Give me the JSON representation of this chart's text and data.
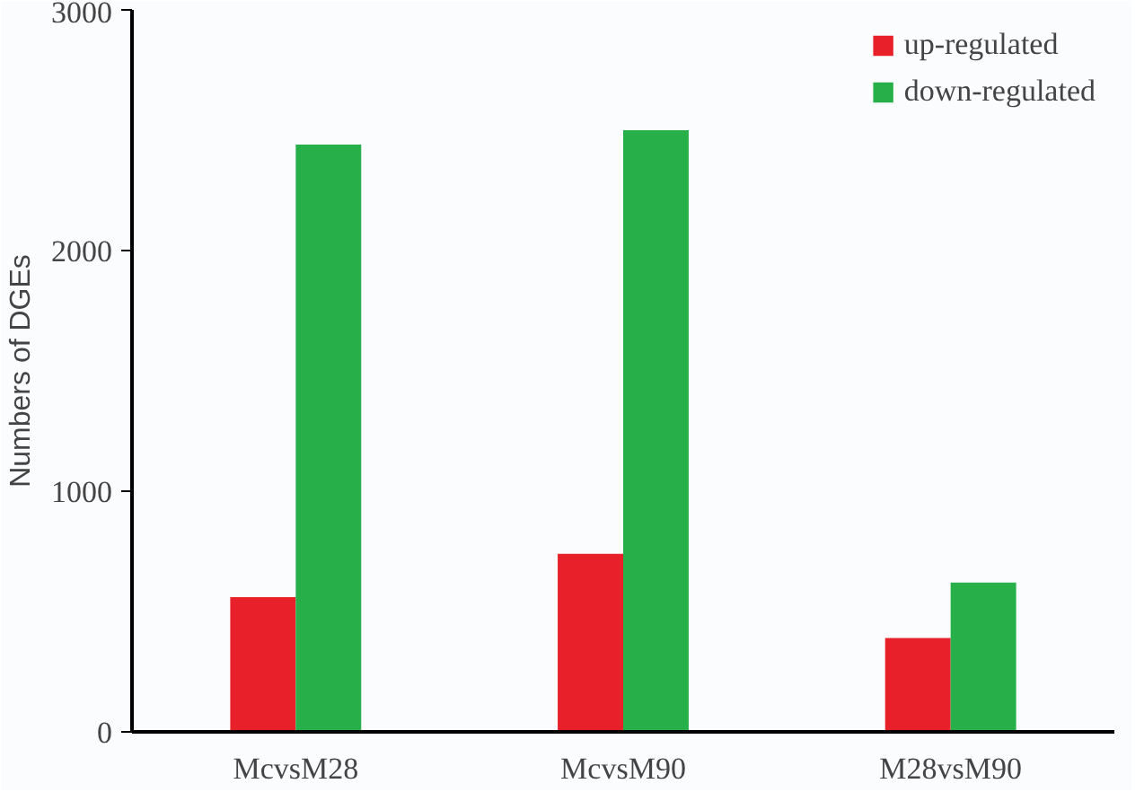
{
  "chart_data": {
    "type": "bar",
    "ylabel": "Numbers of DGEs",
    "categories": [
      "McvsM28",
      "McvsM90",
      "M28vsM90"
    ],
    "series": [
      {
        "name": "up-regulated",
        "color": "#e8202a",
        "values": [
          560,
          740,
          390
        ]
      },
      {
        "name": "down-regulated",
        "color": "#27b04a",
        "values": [
          2440,
          2500,
          620
        ]
      }
    ],
    "ylim": [
      0,
      3000
    ],
    "yticks": [
      0,
      1000,
      2000,
      3000
    ],
    "grid": false,
    "legend": "top right"
  }
}
